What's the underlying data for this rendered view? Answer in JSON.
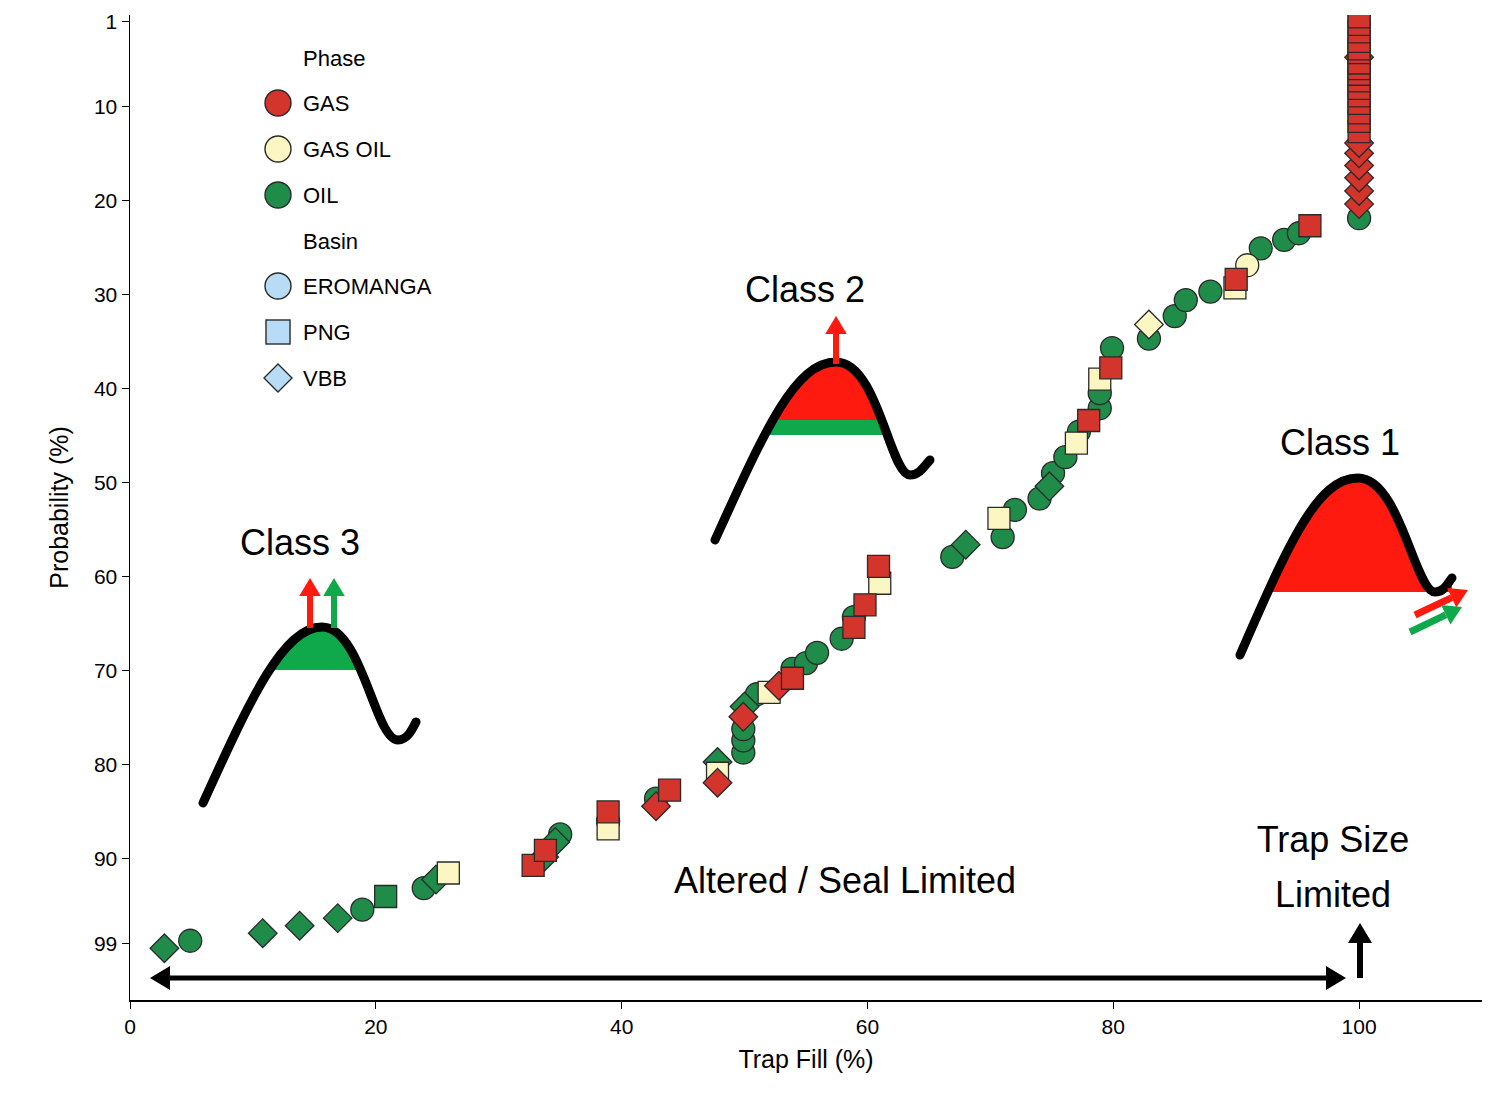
{
  "chart_data": {
    "type": "scatter",
    "xlabel": "Trap Fill (%)",
    "ylabel": "Probability (%)",
    "xlim": [
      0,
      110
    ],
    "xticks": [
      0,
      20,
      40,
      60,
      80,
      100
    ],
    "ylim": [
      105,
      0.3
    ],
    "yticks": [
      1,
      10,
      20,
      30,
      40,
      50,
      60,
      70,
      80,
      90,
      99
    ],
    "grid": false,
    "legend": "upper left",
    "legend_groups": [
      {
        "title": "Phase",
        "items": [
          {
            "name": "GAS",
            "color": "#d3342b",
            "marker": "circle"
          },
          {
            "name": "GAS OIL",
            "color": "#fcf6c2",
            "marker": "circle"
          },
          {
            "name": "OIL",
            "color": "#1f8c4a",
            "marker": "circle"
          }
        ]
      },
      {
        "title": "Basin",
        "items": [
          {
            "name": "EROMANGA",
            "color": "#b8dcf6",
            "marker": "circle"
          },
          {
            "name": "PNG",
            "color": "#b8dcf6",
            "marker": "square"
          },
          {
            "name": "VBB",
            "color": "#b8dcf6",
            "marker": "diamond"
          }
        ]
      }
    ],
    "series": [
      {
        "phase": "OIL",
        "basin": "EROMANGA",
        "x": [
          4.9,
          18.9,
          23.9,
          35.0,
          38.9,
          42.8,
          49.9,
          49.9,
          49.9,
          51.0,
          53.9,
          55.0,
          55.9,
          57.9,
          58.9,
          66.9,
          71.0,
          72.0,
          74.0,
          75.1,
          76.1,
          77.2,
          78.9,
          78.9,
          79.9,
          82.9,
          85.0,
          85.9,
          87.9,
          92.0,
          93.9,
          95.1,
          100
        ],
        "values": [
          98.7,
          95.4,
          93.1,
          87.4,
          86.0,
          83.6,
          78.7,
          77.4,
          76.2,
          72.5,
          69.8,
          69.2,
          68.1,
          66.6,
          64.3,
          57.9,
          55.8,
          52.9,
          51.7,
          49.0,
          47.3,
          44.6,
          42.1,
          40.5,
          35.7,
          34.7,
          32.3,
          30.6,
          29.7,
          25.1,
          24.2,
          23.5,
          21.9
        ]
      },
      {
        "phase": "OIL",
        "basin": "VBB",
        "x": [
          2.8,
          10.8,
          13.8,
          16.9,
          24.9,
          33.7,
          34.6,
          47.8,
          50.0,
          68.0,
          74.8
        ],
        "values": [
          99.5,
          97.9,
          97.1,
          96.3,
          92.2,
          89.8,
          88.2,
          79.7,
          73.8,
          56.6,
          50.4
        ]
      },
      {
        "phase": "OIL",
        "basin": "PNG",
        "x": [
          20.8
        ],
        "values": [
          94.0
        ]
      },
      {
        "phase": "GAS OIL",
        "basin": "PNG",
        "x": [
          25.9,
          38.9,
          47.8,
          52.0,
          61.0,
          70.7,
          77.0,
          78.9,
          89.9
        ],
        "values": [
          91.5,
          86.8,
          80.9,
          72.3,
          60.7,
          53.8,
          45.8,
          39.0,
          29.3
        ]
      },
      {
        "phase": "GAS OIL",
        "basin": "VBB",
        "x": [
          82.9
        ],
        "values": [
          33.2
        ]
      },
      {
        "phase": "GAS OIL",
        "basin": "EROMANGA",
        "x": [
          90.9
        ],
        "values": [
          26.9
        ]
      },
      {
        "phase": "GAS",
        "basin": "VBB",
        "x": [
          42.8,
          47.8,
          49.9,
          52.8,
          100,
          100,
          100,
          100,
          100,
          100,
          100
        ],
        "values": [
          84.4,
          81.9,
          74.9,
          71.6,
          20.4,
          19.0,
          17.6,
          16.3,
          15.0,
          13.9,
          4.8
        ]
      },
      {
        "phase": "GAS",
        "basin": "PNG",
        "x": [
          32.8,
          33.8,
          38.9,
          43.9,
          53.9,
          58.9,
          59.8,
          60.9,
          78.0,
          79.8,
          90.0,
          96.0,
          100,
          100,
          100,
          100,
          100,
          100,
          100,
          100,
          100,
          100,
          100,
          100,
          100,
          100,
          100,
          100
        ],
        "values": [
          90.7,
          89.1,
          85.0,
          82.7,
          70.8,
          65.4,
          63.0,
          58.9,
          43.4,
          37.8,
          28.4,
          22.7,
          12.7,
          11.6,
          10.7,
          9.7,
          8.9,
          8.1,
          7.3,
          6.6,
          6.0,
          5.4,
          4.3,
          3.9,
          3.1,
          2.1,
          1.3,
          0.5
        ]
      }
    ],
    "annotations": [
      "Class 3",
      "Class 2",
      "Class 1",
      "Altered / Seal Limited",
      "Trap Size Limited"
    ]
  }
}
